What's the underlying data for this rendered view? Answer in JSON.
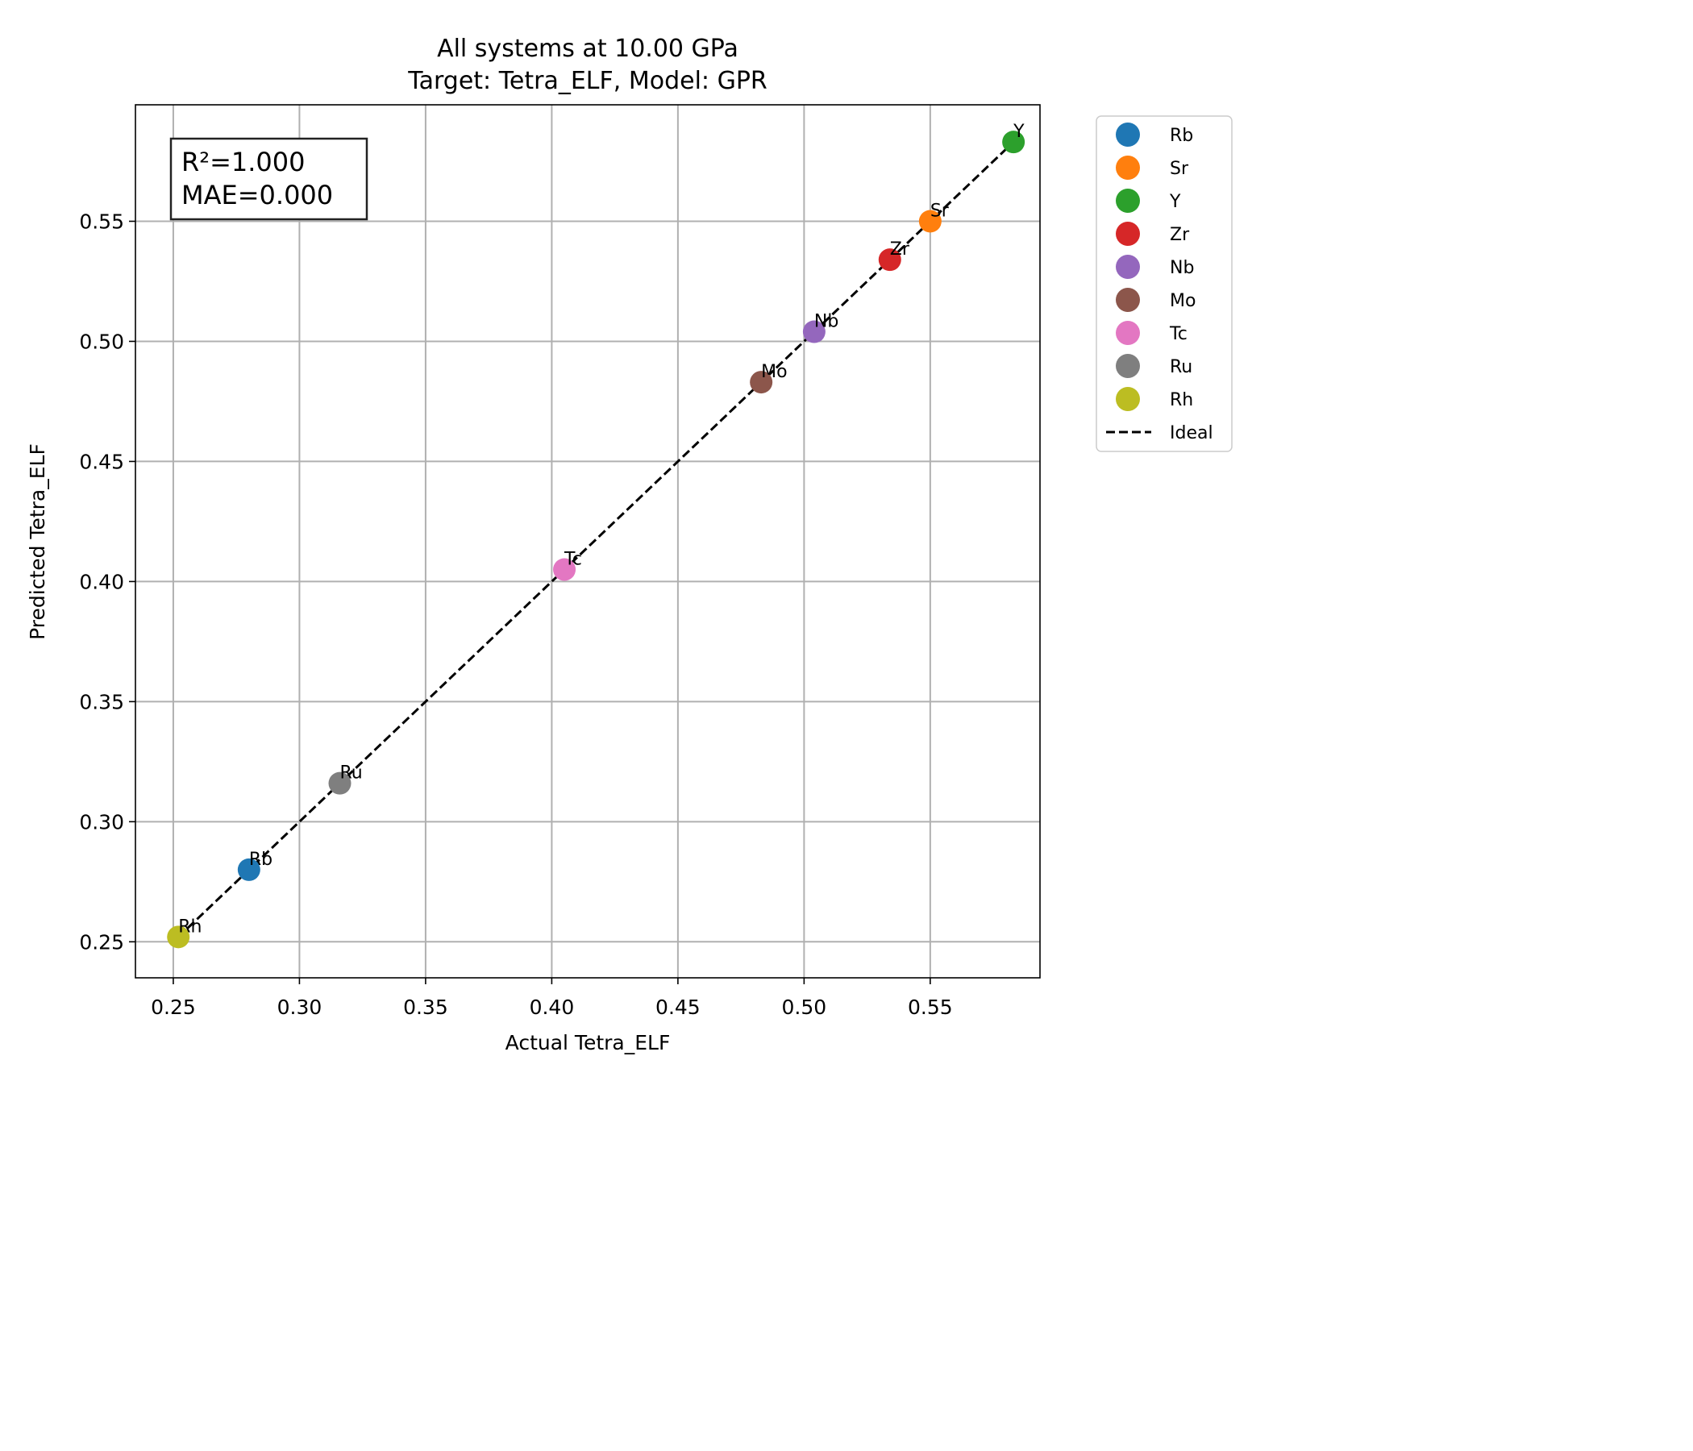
{
  "chart_data": {
    "type": "scatter",
    "title": "All systems at 10.00 GPa",
    "subtitle": "Target: Tetra_ELF, Model: GPR",
    "xlabel": "Actual Tetra_ELF",
    "ylabel": "Predicted Tetra_ELF",
    "xlim": [
      0.235,
      0.5935
    ],
    "ylim": [
      0.235,
      0.5985
    ],
    "xticks": [
      "0.25",
      "0.30",
      "0.35",
      "0.40",
      "0.45",
      "0.50",
      "0.55"
    ],
    "yticks": [
      "0.25",
      "0.30",
      "0.35",
      "0.40",
      "0.45",
      "0.50",
      "0.55"
    ],
    "grid": true,
    "legend_position": "outside-top-right",
    "series": [
      {
        "name": "Rb",
        "color": "#1f77b4",
        "x": 0.28,
        "y": 0.28
      },
      {
        "name": "Sr",
        "color": "#ff7f0e",
        "x": 0.55,
        "y": 0.55
      },
      {
        "name": "Y",
        "color": "#2ca02c",
        "x": 0.583,
        "y": 0.583
      },
      {
        "name": "Zr",
        "color": "#d62728",
        "x": 0.534,
        "y": 0.534
      },
      {
        "name": "Nb",
        "color": "#9467bd",
        "x": 0.504,
        "y": 0.504
      },
      {
        "name": "Mo",
        "color": "#8c564b",
        "x": 0.483,
        "y": 0.483
      },
      {
        "name": "Tc",
        "color": "#e377c2",
        "x": 0.405,
        "y": 0.405
      },
      {
        "name": "Ru",
        "color": "#7f7f7f",
        "x": 0.316,
        "y": 0.316
      },
      {
        "name": "Rh",
        "color": "#bcbd22",
        "x": 0.252,
        "y": 0.252
      }
    ],
    "ideal_line": {
      "name": "Ideal",
      "color": "#000000",
      "x": [
        0.252,
        0.583
      ],
      "y": [
        0.252,
        0.583
      ]
    },
    "annotation": {
      "line1": "R²=1.000",
      "line2": "MAE=0.000"
    }
  }
}
